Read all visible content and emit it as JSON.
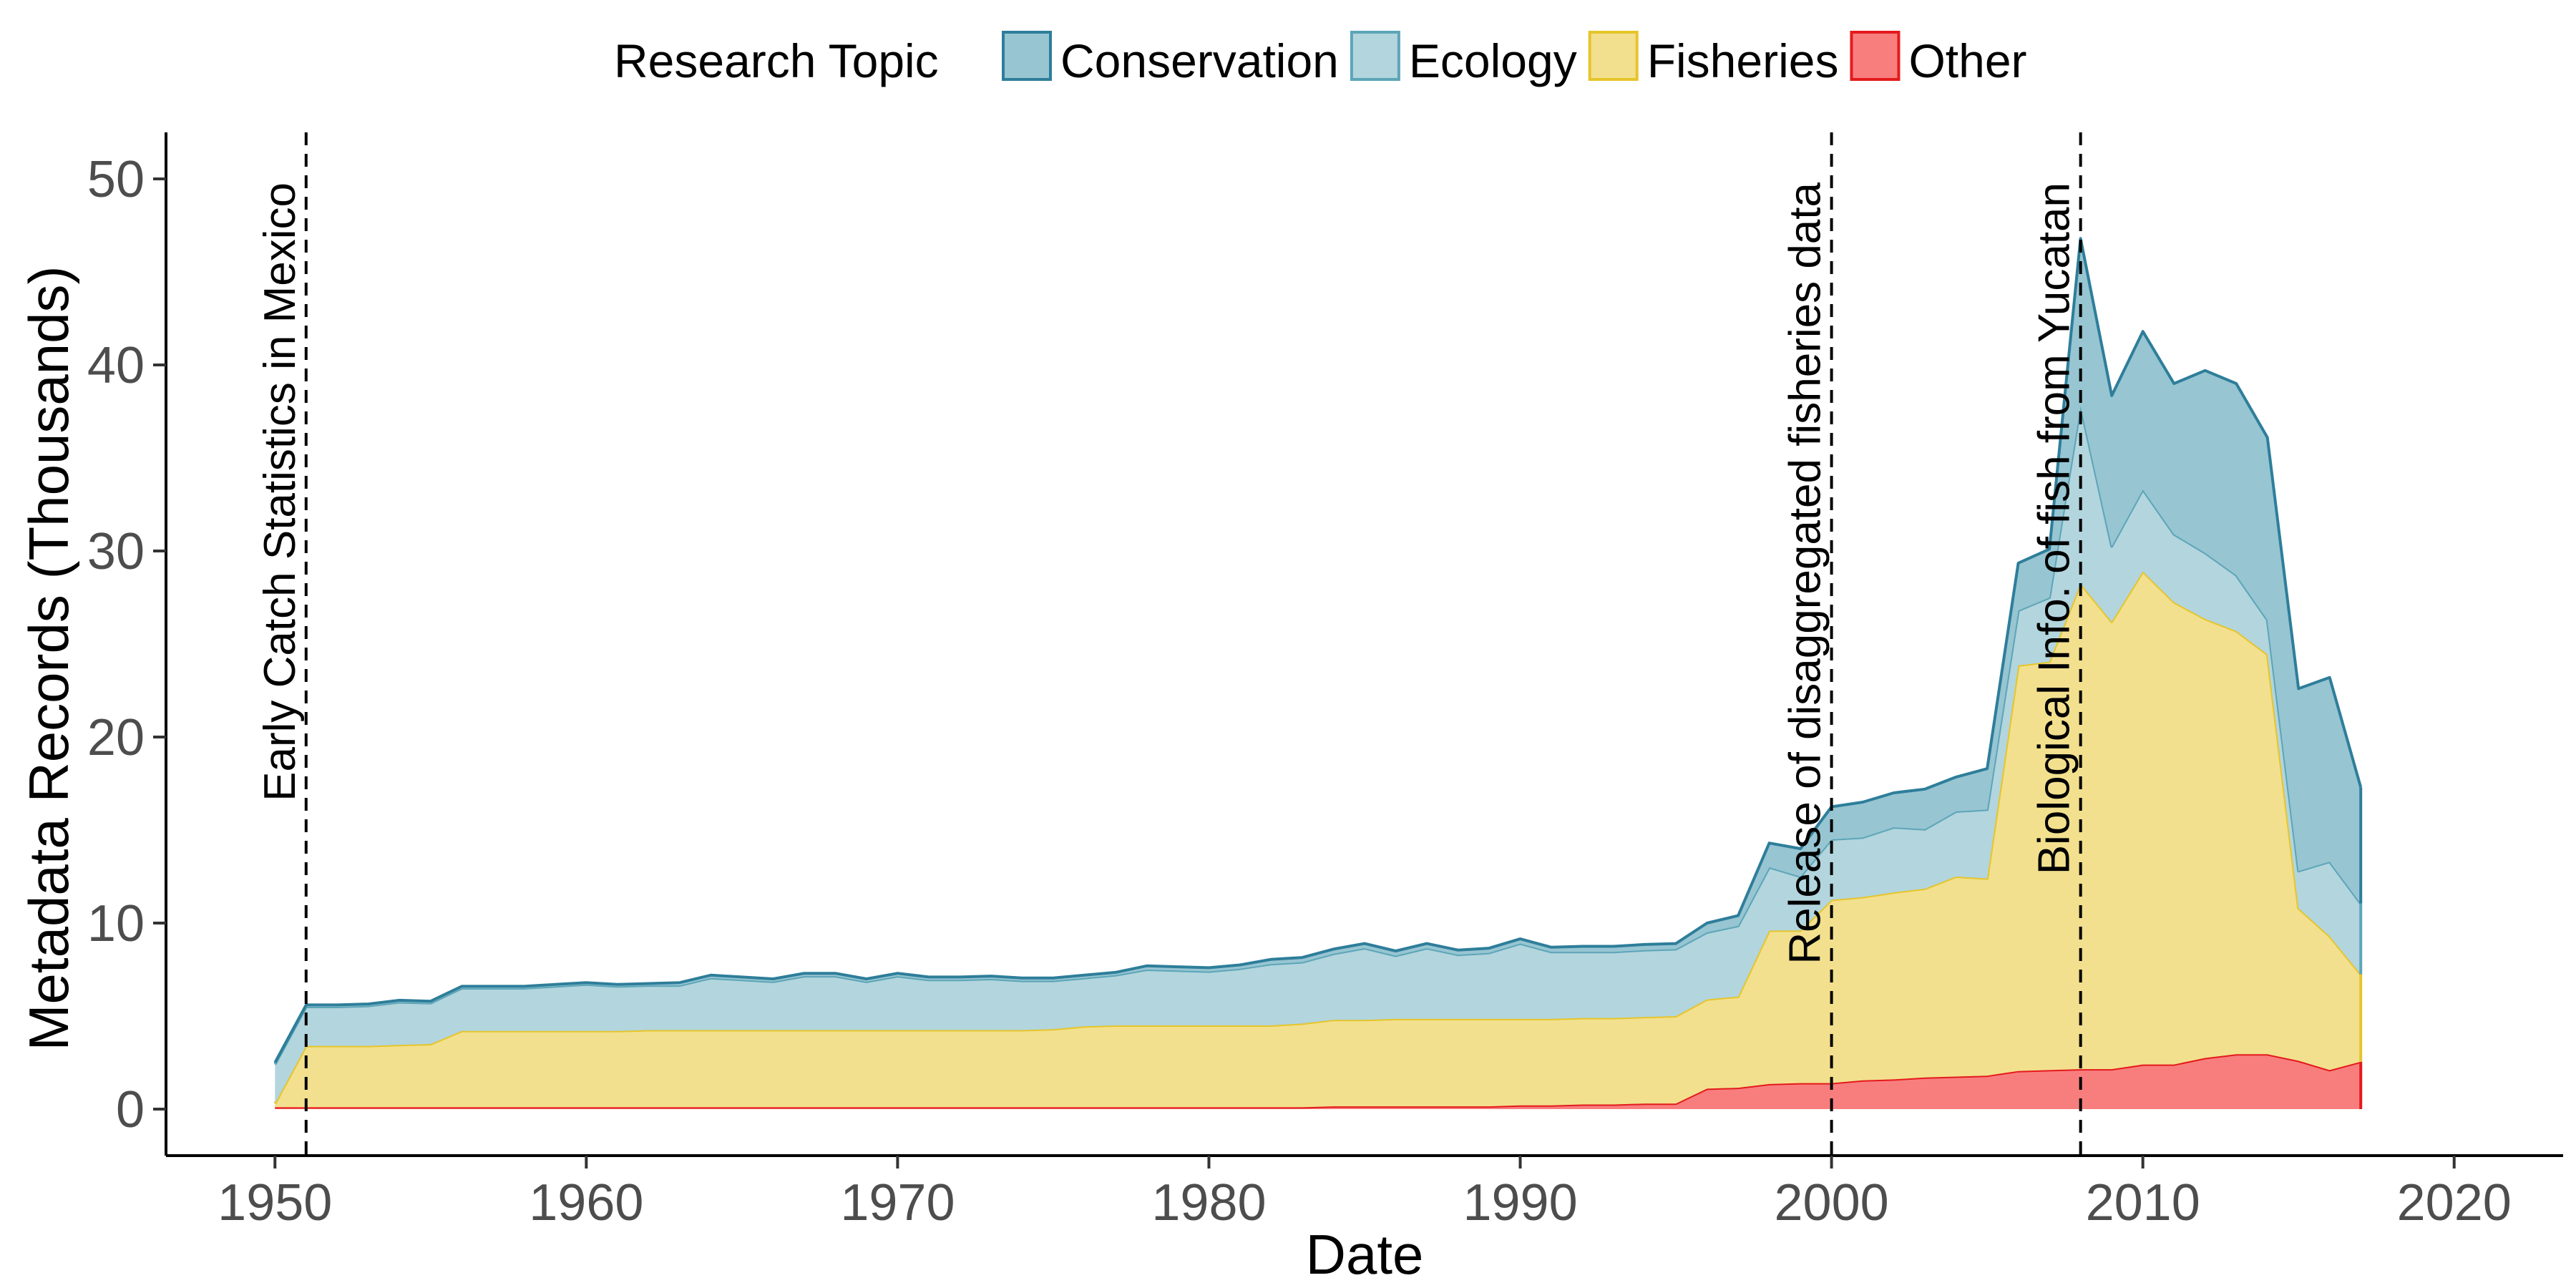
{
  "chart_data": {
    "type": "area",
    "stacked": true,
    "xlabel": "Date",
    "ylabel": "Metadata Records (Thousands)",
    "xlim": [
      1946.5,
      2023.5
    ],
    "ylim": [
      -2.5,
      52.5
    ],
    "x_ticks": [
      1950,
      1960,
      1970,
      1980,
      1990,
      2000,
      2010,
      2020
    ],
    "y_ticks": [
      0,
      10,
      20,
      30,
      40,
      50
    ],
    "grid": false,
    "legend": {
      "title": "Research Topic",
      "position": "top",
      "order": [
        "Conservation",
        "Ecology",
        "Fisheries",
        "Other"
      ]
    },
    "annotations": [
      {
        "x": 1951,
        "label": "Early Catch Statistics in Mexico"
      },
      {
        "x": 2000,
        "label": "Release of disaggregated fisheries data"
      },
      {
        "x": 2008,
        "label": "Biological Info. of fish from Yucatan"
      }
    ],
    "x": [
      1950,
      1951,
      1952,
      1953,
      1954,
      1955,
      1956,
      1957,
      1958,
      1959,
      1960,
      1961,
      1962,
      1963,
      1964,
      1965,
      1966,
      1967,
      1968,
      1969,
      1970,
      1971,
      1972,
      1973,
      1974,
      1975,
      1976,
      1977,
      1978,
      1979,
      1980,
      1981,
      1982,
      1983,
      1984,
      1985,
      1986,
      1987,
      1988,
      1989,
      1990,
      1991,
      1992,
      1993,
      1994,
      1995,
      1996,
      1997,
      1998,
      1999,
      2000,
      2001,
      2002,
      2003,
      2004,
      2005,
      2006,
      2007,
      2008,
      2009,
      2010,
      2011,
      2012,
      2013,
      2014,
      2015,
      2016,
      2017
    ],
    "series": [
      {
        "name": "Other",
        "fill": "#f87e7e",
        "stroke": "#e41a1c",
        "values": [
          0.1,
          0.1,
          0.1,
          0.1,
          0.1,
          0.1,
          0.1,
          0.1,
          0.1,
          0.1,
          0.1,
          0.1,
          0.1,
          0.1,
          0.1,
          0.1,
          0.1,
          0.1,
          0.1,
          0.1,
          0.1,
          0.1,
          0.1,
          0.1,
          0.1,
          0.1,
          0.1,
          0.1,
          0.1,
          0.1,
          0.1,
          0.1,
          0.1,
          0.1,
          0.15,
          0.15,
          0.15,
          0.15,
          0.15,
          0.15,
          0.2,
          0.2,
          0.25,
          0.25,
          0.3,
          0.3,
          1.1,
          1.15,
          1.35,
          1.4,
          1.4,
          1.55,
          1.6,
          1.7,
          1.75,
          1.8,
          2.05,
          2.1,
          2.15,
          2.15,
          2.4,
          2.4,
          2.75,
          2.95,
          2.95,
          2.6,
          2.1,
          2.55
        ]
      },
      {
        "name": "Fisheries",
        "fill": "#f2e08e",
        "stroke": "#e6c52b",
        "values": [
          0.2,
          3.3,
          3.3,
          3.3,
          3.35,
          3.4,
          4.1,
          4.1,
          4.1,
          4.1,
          4.1,
          4.1,
          4.15,
          4.15,
          4.15,
          4.15,
          4.15,
          4.15,
          4.15,
          4.15,
          4.15,
          4.15,
          4.15,
          4.15,
          4.15,
          4.2,
          4.35,
          4.4,
          4.4,
          4.4,
          4.4,
          4.4,
          4.4,
          4.5,
          4.65,
          4.65,
          4.7,
          4.7,
          4.7,
          4.7,
          4.65,
          4.65,
          4.65,
          4.65,
          4.65,
          4.7,
          4.8,
          4.9,
          8.25,
          8.2,
          9.85,
          9.85,
          10.05,
          10.15,
          10.75,
          10.6,
          21.8,
          21.95,
          26.1,
          24.05,
          26.5,
          24.85,
          23.6,
          22.75,
          21.5,
          8.2,
          7.2,
          4.7
        ]
      },
      {
        "name": "Ecology",
        "fill": "#b3d5dd",
        "stroke": "#5ca5b8",
        "values": [
          2.1,
          2.1,
          2.1,
          2.15,
          2.3,
          2.2,
          2.3,
          2.3,
          2.3,
          2.4,
          2.5,
          2.4,
          2.4,
          2.4,
          2.8,
          2.7,
          2.6,
          2.9,
          2.9,
          2.6,
          2.9,
          2.7,
          2.7,
          2.75,
          2.65,
          2.6,
          2.6,
          2.7,
          3.0,
          2.95,
          2.9,
          3.05,
          3.3,
          3.3,
          3.55,
          3.85,
          3.4,
          3.8,
          3.45,
          3.55,
          4.05,
          3.6,
          3.55,
          3.55,
          3.6,
          3.6,
          3.6,
          3.8,
          3.4,
          2.9,
          3.25,
          3.2,
          3.5,
          3.2,
          3.5,
          3.7,
          2.95,
          3.45,
          9.55,
          4.05,
          4.4,
          3.65,
          3.55,
          3.0,
          1.85,
          2.0,
          4.0,
          3.8
        ]
      },
      {
        "name": "Conservation",
        "fill": "#97c5d2",
        "stroke": "#2e7e9a",
        "values": [
          0.1,
          0.1,
          0.1,
          0.1,
          0.1,
          0.1,
          0.1,
          0.1,
          0.1,
          0.1,
          0.1,
          0.1,
          0.1,
          0.15,
          0.15,
          0.15,
          0.15,
          0.15,
          0.15,
          0.15,
          0.15,
          0.15,
          0.15,
          0.15,
          0.15,
          0.15,
          0.15,
          0.15,
          0.2,
          0.2,
          0.2,
          0.2,
          0.25,
          0.25,
          0.25,
          0.25,
          0.25,
          0.25,
          0.25,
          0.25,
          0.25,
          0.25,
          0.3,
          0.3,
          0.3,
          0.3,
          0.5,
          0.55,
          1.3,
          1.5,
          1.75,
          1.9,
          1.85,
          2.15,
          1.85,
          2.2,
          2.55,
          2.6,
          9.0,
          8.1,
          8.5,
          8.1,
          9.8,
          10.3,
          9.8,
          9.8,
          9.9,
          6.25
        ]
      }
    ]
  }
}
